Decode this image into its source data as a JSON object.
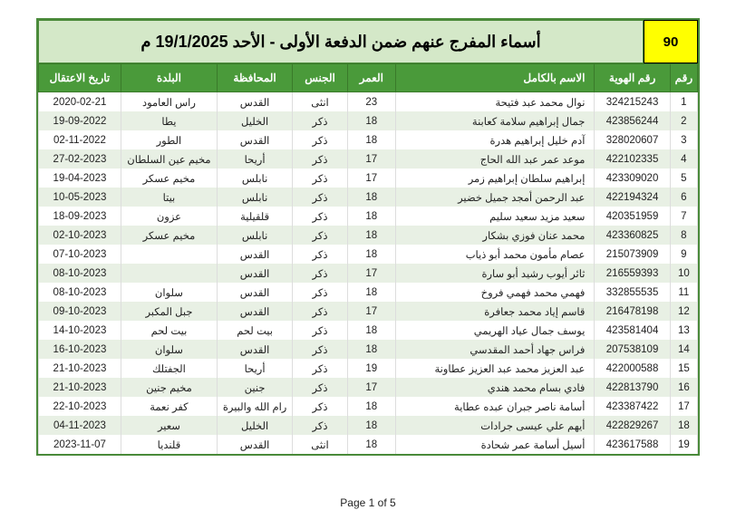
{
  "header": {
    "badge": "90",
    "title": "أسماء المفرج عنهم ضمن الدفعة الأولى - الأحد 19/1/2025 م"
  },
  "columns": {
    "idx": "رقم",
    "id": "رقم الهوية",
    "name": "الاسم بالكامل",
    "age": "العمر",
    "gender": "الجنس",
    "gov": "المحافظة",
    "town": "البلدة",
    "date": "تاريخ الاعتقال"
  },
  "rows": [
    {
      "idx": "1",
      "id": "324215243",
      "name": "نوال محمد عبد فتيحة",
      "age": "23",
      "gender": "انثى",
      "gov": "القدس",
      "town": "راس العامود",
      "date": "2020-02-21"
    },
    {
      "idx": "2",
      "id": "423856244",
      "name": "جمال إبراهيم سلامة كعابنة",
      "age": "18",
      "gender": "ذكر",
      "gov": "الخليل",
      "town": "يطا",
      "date": "19-09-2022"
    },
    {
      "idx": "3",
      "id": "328020607",
      "name": "آدم خليل إبراهيم هدرة",
      "age": "18",
      "gender": "ذكر",
      "gov": "القدس",
      "town": "الطور",
      "date": "02-11-2022"
    },
    {
      "idx": "4",
      "id": "422102335",
      "name": "موعد عمر عبد الله الحاج",
      "age": "17",
      "gender": "ذكر",
      "gov": "أريحا",
      "town": "مخيم عين السلطان",
      "date": "27-02-2023"
    },
    {
      "idx": "5",
      "id": "423309020",
      "name": "إبراهيم سلطان إبراهيم زمر",
      "age": "17",
      "gender": "ذكر",
      "gov": "نابلس",
      "town": "مخيم عسكر",
      "date": "19-04-2023"
    },
    {
      "idx": "6",
      "id": "422194324",
      "name": "عبد الرحمن أمجد جميل خضير",
      "age": "18",
      "gender": "ذكر",
      "gov": "نابلس",
      "town": "بيتا",
      "date": "10-05-2023"
    },
    {
      "idx": "7",
      "id": "420351959",
      "name": "سعيد مزيد سعيد سليم",
      "age": "18",
      "gender": "ذكر",
      "gov": "قلقيلية",
      "town": "عزون",
      "date": "18-09-2023"
    },
    {
      "idx": "8",
      "id": "423360825",
      "name": "محمد عنان فوزي بشكار",
      "age": "18",
      "gender": "ذكر",
      "gov": "نابلس",
      "town": "مخيم عسكر",
      "date": "02-10-2023"
    },
    {
      "idx": "9",
      "id": "215073909",
      "name": "عصام مأمون محمد أبو ذياب",
      "age": "18",
      "gender": "ذكر",
      "gov": "القدس",
      "town": "",
      "date": "07-10-2023"
    },
    {
      "idx": "10",
      "id": "216559393",
      "name": "ثائر أيوب رشيد أبو سارة",
      "age": "17",
      "gender": "ذكر",
      "gov": "القدس",
      "town": "",
      "date": "08-10-2023"
    },
    {
      "idx": "11",
      "id": "332855535",
      "name": "فهمي محمد فهمي فروخ",
      "age": "18",
      "gender": "ذكر",
      "gov": "القدس",
      "town": "سلوان",
      "date": "08-10-2023"
    },
    {
      "idx": "12",
      "id": "216478198",
      "name": "قاسم إياد محمد جعافرة",
      "age": "17",
      "gender": "ذكر",
      "gov": "القدس",
      "town": "جبل المكبر",
      "date": "09-10-2023"
    },
    {
      "idx": "13",
      "id": "423581404",
      "name": "يوسف جمال عياد الهريمي",
      "age": "18",
      "gender": "ذكر",
      "gov": "بيت لحم",
      "town": "بيت لحم",
      "date": "14-10-2023"
    },
    {
      "idx": "14",
      "id": "207538109",
      "name": "فراس جهاد أحمد المقدسي",
      "age": "18",
      "gender": "ذكر",
      "gov": "القدس",
      "town": "سلوان",
      "date": "16-10-2023"
    },
    {
      "idx": "15",
      "id": "422000588",
      "name": "عبد العزيز محمد عبد العزيز عطاونة",
      "age": "19",
      "gender": "ذكر",
      "gov": "أريحا",
      "town": "الجفتلك",
      "date": "21-10-2023"
    },
    {
      "idx": "16",
      "id": "422813790",
      "name": "فادي بسام محمد هندي",
      "age": "17",
      "gender": "ذكر",
      "gov": "جنين",
      "town": "مخيم جنين",
      "date": "21-10-2023"
    },
    {
      "idx": "17",
      "id": "423387422",
      "name": "أسامة ناصر جبران عبده عطاية",
      "age": "18",
      "gender": "ذكر",
      "gov": "رام الله والبيرة",
      "town": "كفر نعمة",
      "date": "22-10-2023"
    },
    {
      "idx": "18",
      "id": "422829267",
      "name": "أيهم علي عيسى جرادات",
      "age": "18",
      "gender": "ذكر",
      "gov": "الخليل",
      "town": "سعير",
      "date": "04-11-2023"
    },
    {
      "idx": "19",
      "id": "423617588",
      "name": "أسيل أسامة عمر شحادة",
      "age": "18",
      "gender": "انثى",
      "gov": "القدس",
      "town": "قلنديا",
      "date": "2023-11-07"
    }
  ],
  "footer": {
    "page": "Page 1 of 5"
  },
  "style": {
    "header_bg": "#4a9a3a",
    "header_fg": "#ffffff",
    "title_bg": "#d4e8c8",
    "badge_bg": "#ffff00",
    "row_even_bg": "#e8f0e4",
    "row_odd_bg": "#ffffff",
    "border": "#4a8a3a",
    "font_size_body": 11.5,
    "font_size_header": 12,
    "font_size_title": 18
  }
}
